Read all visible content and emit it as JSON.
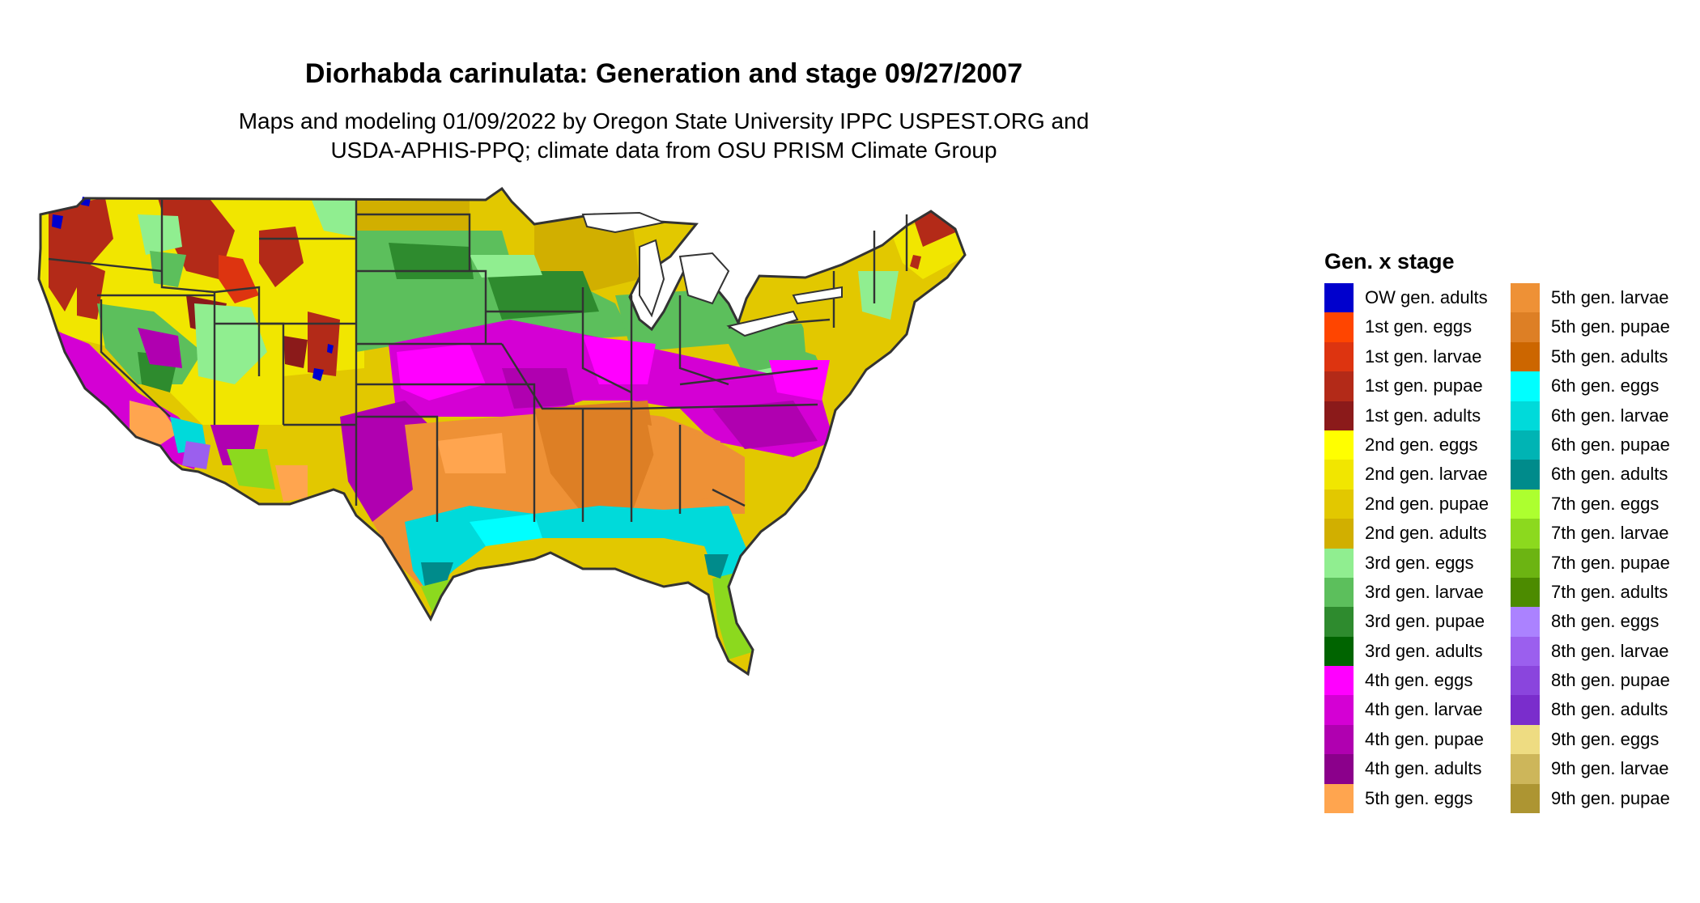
{
  "title": "Diorhabda carinulata: Generation and stage 09/27/2007",
  "subtitle": [
    "Maps and modeling 01/09/2022 by Oregon State University IPPC USPEST.ORG and",
    "USDA-APHIS-PPQ; climate data from OSU PRISM Climate Group"
  ],
  "legend": {
    "title": "Gen. x stage",
    "items": [
      {
        "label": "OW gen. adults",
        "color": "#0000CD"
      },
      {
        "label": "1st gen. eggs",
        "color": "#FF4500"
      },
      {
        "label": "1st gen. larvae",
        "color": "#DD3410"
      },
      {
        "label": "1st gen. pupae",
        "color": "#B32A18"
      },
      {
        "label": "1st gen. adults",
        "color": "#8B1A1A"
      },
      {
        "label": "2nd gen. eggs",
        "color": "#FFFF00"
      },
      {
        "label": "2nd gen. larvae",
        "color": "#F1E600"
      },
      {
        "label": "2nd gen. pupae",
        "color": "#E2C800"
      },
      {
        "label": "2nd gen. adults",
        "color": "#D1AF00"
      },
      {
        "label": "3rd gen. eggs",
        "color": "#90EE90"
      },
      {
        "label": "3rd gen. larvae",
        "color": "#5CBF5C"
      },
      {
        "label": "3rd gen. pupae",
        "color": "#2E8B2E"
      },
      {
        "label": "3rd gen. adults",
        "color": "#006400"
      },
      {
        "label": "4th gen. eggs",
        "color": "#FF00FF"
      },
      {
        "label": "4th gen. larvae",
        "color": "#D400D4"
      },
      {
        "label": "4th gen. pupae",
        "color": "#B000B0"
      },
      {
        "label": "4th gen. adults",
        "color": "#8B008B"
      },
      {
        "label": "5th gen. eggs",
        "color": "#FFA54F"
      },
      {
        "label": "5th gen. larvae",
        "color": "#EE9136"
      },
      {
        "label": "5th gen. pupae",
        "color": "#DD7F25"
      },
      {
        "label": "5th gen. adults",
        "color": "#CC6600"
      },
      {
        "label": "6th gen. eggs",
        "color": "#00FFFF"
      },
      {
        "label": "6th gen. larvae",
        "color": "#00DADA"
      },
      {
        "label": "6th gen. pupae",
        "color": "#00B4B4"
      },
      {
        "label": "6th gen. adults",
        "color": "#008B8B"
      },
      {
        "label": "7th gen. eggs",
        "color": "#ADFF2F"
      },
      {
        "label": "7th gen. larvae",
        "color": "#8CD91E"
      },
      {
        "label": "7th gen. pupae",
        "color": "#6CB412"
      },
      {
        "label": "7th gen. adults",
        "color": "#4C8B00"
      },
      {
        "label": "8th gen. eggs",
        "color": "#AB82FF"
      },
      {
        "label": "8th gen. larvae",
        "color": "#9B5FEE"
      },
      {
        "label": "8th gen. pupae",
        "color": "#8A45DD"
      },
      {
        "label": "8th gen. adults",
        "color": "#7A2DCC"
      },
      {
        "label": "9th gen. eggs",
        "color": "#EEDC82"
      },
      {
        "label": "9th gen. larvae",
        "color": "#CDB65A"
      },
      {
        "label": "9th gen. pupae",
        "color": "#AD9532"
      }
    ]
  }
}
